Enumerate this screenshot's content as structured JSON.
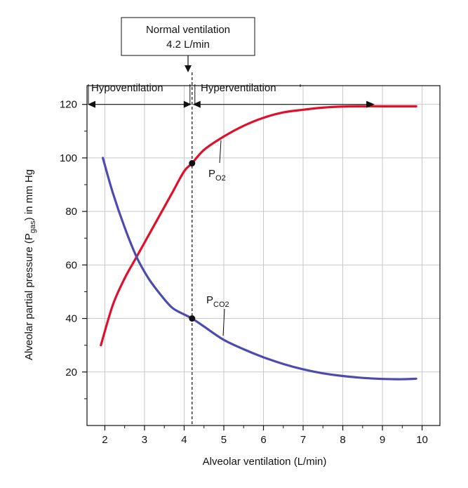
{
  "chart_data": {
    "type": "line",
    "xlabel": "Alveolar ventilation (L/min)",
    "ylabel": "Alveolar partial pressure (P",
    "ylabel_sub": "gas",
    "ylabel_suffix": ") in mm Hg",
    "xlim": [
      1.55,
      10.45
    ],
    "ylim": [
      0,
      127
    ],
    "x_ticks": [
      2,
      3,
      4,
      5,
      6,
      7,
      8,
      9,
      10
    ],
    "y_ticks": [
      20,
      40,
      60,
      80,
      100,
      120
    ],
    "grid": true,
    "colors": {
      "po2": "#e0102a",
      "pco2": "#4b4bb0",
      "grid": "#c8c8c8"
    },
    "series": [
      {
        "id": "po2",
        "name": "P",
        "subscript": "O2",
        "x": [
          1.9,
          2.2,
          2.5,
          2.8,
          3.1,
          3.4,
          3.7,
          4.0,
          4.2,
          4.5,
          5.0,
          5.5,
          6.0,
          6.5,
          7.0,
          7.5,
          8.0,
          8.5,
          9.0,
          9.5,
          9.85
        ],
        "y": [
          30,
          45,
          55,
          63,
          71,
          79,
          87,
          95,
          98,
          103,
          108,
          112,
          115,
          117,
          118,
          118.8,
          119.2,
          119.3,
          119.3,
          119.3,
          119.3
        ]
      },
      {
        "id": "pco2",
        "name": "P",
        "subscript": "CO2",
        "x": [
          1.95,
          2.2,
          2.5,
          2.8,
          3.1,
          3.4,
          3.7,
          4.0,
          4.2,
          4.5,
          5.0,
          5.5,
          6.0,
          6.5,
          7.0,
          7.5,
          8.0,
          8.5,
          9.0,
          9.5,
          9.85
        ],
        "y": [
          100,
          87,
          74,
          63,
          55,
          49,
          44,
          41.5,
          40,
          37,
          32,
          28.5,
          25.5,
          23,
          21,
          19.5,
          18.5,
          17.8,
          17.4,
          17.3,
          17.5
        ]
      }
    ],
    "markers": [
      {
        "series": "po2",
        "x": 4.2,
        "y": 98
      },
      {
        "series": "pco2",
        "x": 4.2,
        "y": 40
      }
    ],
    "reference_line": {
      "x": 4.2
    },
    "callout": {
      "line1": "Normal ventilation",
      "line2": "4.2 L/min"
    },
    "regions": {
      "hypo": "Hypoventilation",
      "hyper": "Hyperventilation"
    }
  }
}
